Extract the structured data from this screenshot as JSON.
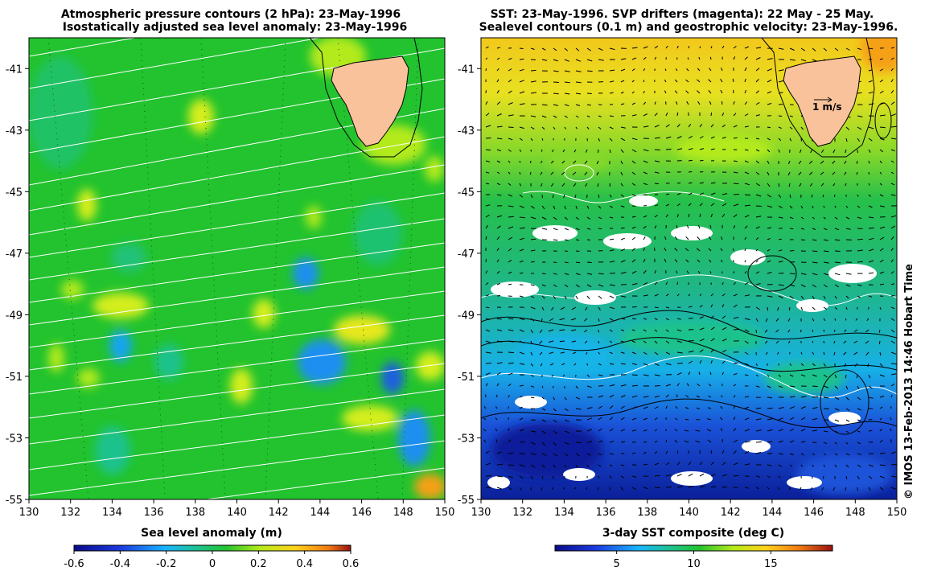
{
  "left_panel": {
    "title_line1": "Atmospheric pressure contours (2 hPa): 23-May-1996",
    "title_line2": "Isostatically adjusted sea level anomaly: 23-May-1996",
    "colorbar_label": "Sea level anomaly (m)",
    "colorbar_ticks": [
      "-0.6",
      "-0.4",
      "-0.2",
      "0",
      "0.2",
      "0.4",
      "0.6"
    ],
    "colorbar_range": [
      -0.6,
      0.6
    ]
  },
  "right_panel": {
    "title_line1": "SST: 23-May-1996. SVP drifters (magenta): 22 May - 25 May.",
    "title_line2": "Sealevel contours (0.1 m) and geostrophic velocity: 23-May-1996.",
    "colorbar_label": "3-day SST composite (deg C)",
    "colorbar_ticks": [
      "5",
      "10",
      "15"
    ],
    "colorbar_range": [
      1,
      19
    ],
    "scale_label": "1 m/s"
  },
  "axes": {
    "lon_ticks": [
      "130",
      "132",
      "134",
      "136",
      "138",
      "140",
      "142",
      "144",
      "146",
      "148",
      "150"
    ],
    "lat_ticks": [
      "-41",
      "-43",
      "-45",
      "-47",
      "-49",
      "-51",
      "-53",
      "-55"
    ],
    "lon_range": [
      130,
      150
    ],
    "lat_range": [
      -40,
      -55
    ]
  },
  "credit": "© IMOS 13-Feb-2013 14:46 Hobart Time",
  "colors": {
    "land": "#f9c29b",
    "left_base": "#22c32e",
    "right_warm": "#f0d820",
    "right_cold": "#0b1f9a",
    "contour_white": "#ffffff",
    "contour_black": "#000000"
  }
}
